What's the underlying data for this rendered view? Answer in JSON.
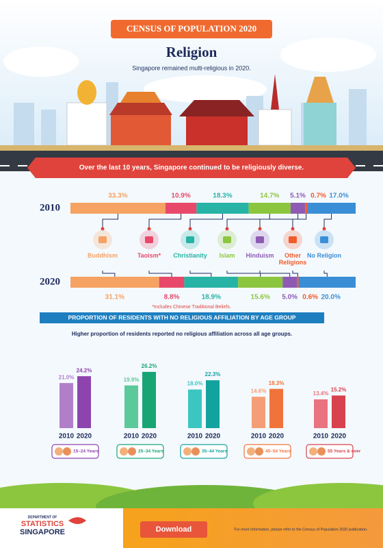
{
  "header": {
    "badge": "CENSUS OF POPULATION 2020",
    "title": "Religion",
    "subtitle": "Singapore remained multi-religious in 2020."
  },
  "banner": "Over the last 10 years, Singapore continued to be religiously diverse.",
  "chart_data": [
    {
      "type": "stacked-bar",
      "categories": [
        "2010",
        "2020"
      ],
      "xlim": [
        0,
        100
      ],
      "series": [
        {
          "name": "Buddhism",
          "color": "#f5a263",
          "values": [
            33.3,
            31.1
          ],
          "value_labels": [
            "33.3%",
            "31.1%"
          ]
        },
        {
          "name": "Taoism*",
          "color": "#e8496a",
          "values": [
            10.9,
            8.8
          ],
          "value_labels": [
            "10.9%",
            "8.8%"
          ]
        },
        {
          "name": "Christianity",
          "color": "#27b3a6",
          "values": [
            18.3,
            18.9
          ],
          "value_labels": [
            "18.3%",
            "18.9%"
          ]
        },
        {
          "name": "Islam",
          "color": "#8cc63f",
          "values": [
            14.7,
            15.6
          ],
          "value_labels": [
            "14.7%",
            "15.6%"
          ]
        },
        {
          "name": "Hinduism",
          "color": "#8d5bb4",
          "values": [
            5.1,
            5.0
          ],
          "value_labels": [
            "5.1%",
            "5.0%"
          ]
        },
        {
          "name": "Other Religions",
          "color": "#f15a29",
          "values": [
            0.7,
            0.6
          ],
          "value_labels": [
            "0.7%",
            "0.6%"
          ]
        },
        {
          "name": "No Religion",
          "color": "#3a8ed6",
          "values": [
            17.0,
            20.0
          ],
          "value_labels": [
            "17.0%",
            "20.0%"
          ]
        }
      ],
      "footnote": "*Includes Chinese Traditional Beliefs."
    },
    {
      "type": "grouped-bar",
      "title": "PROPORTION OF RESIDENTS WITH NO RELIGIOUS AFFILIATION BY AGE GROUP",
      "subtitle": "Higher proportion of residents reported no religious affiliation across all age groups.",
      "categories": [
        "15–24 Years",
        "25–34 Years",
        "35–44 Years",
        "45–54 Years",
        "55 Years & over"
      ],
      "ylim": [
        0,
        30
      ],
      "series": [
        {
          "name": "2010",
          "colors": [
            "#b17ec9",
            "#5cc99a",
            "#3cc6c2",
            "#f59d76",
            "#e9737e"
          ],
          "values": [
            21.0,
            19.9,
            18.0,
            14.6,
            13.4
          ],
          "value_labels": [
            "21.0%",
            "19.9%",
            "18.0%",
            "14.6%",
            "13.4%"
          ]
        },
        {
          "name": "2020",
          "colors": [
            "#8e44ad",
            "#17a673",
            "#12a39f",
            "#f0733c",
            "#d8414e"
          ],
          "values": [
            24.2,
            26.2,
            22.3,
            18.3,
            15.2
          ],
          "value_labels": [
            "24.2%",
            "26.2%",
            "22.3%",
            "18.3%",
            "15.2%"
          ]
        }
      ]
    }
  ],
  "footer": {
    "logo": [
      "DEPARTMENT OF",
      "STATISTICS",
      "SINGAPORE"
    ],
    "button": "Download",
    "note": "For more information, please refer to the Census of Population 2020 publication."
  }
}
